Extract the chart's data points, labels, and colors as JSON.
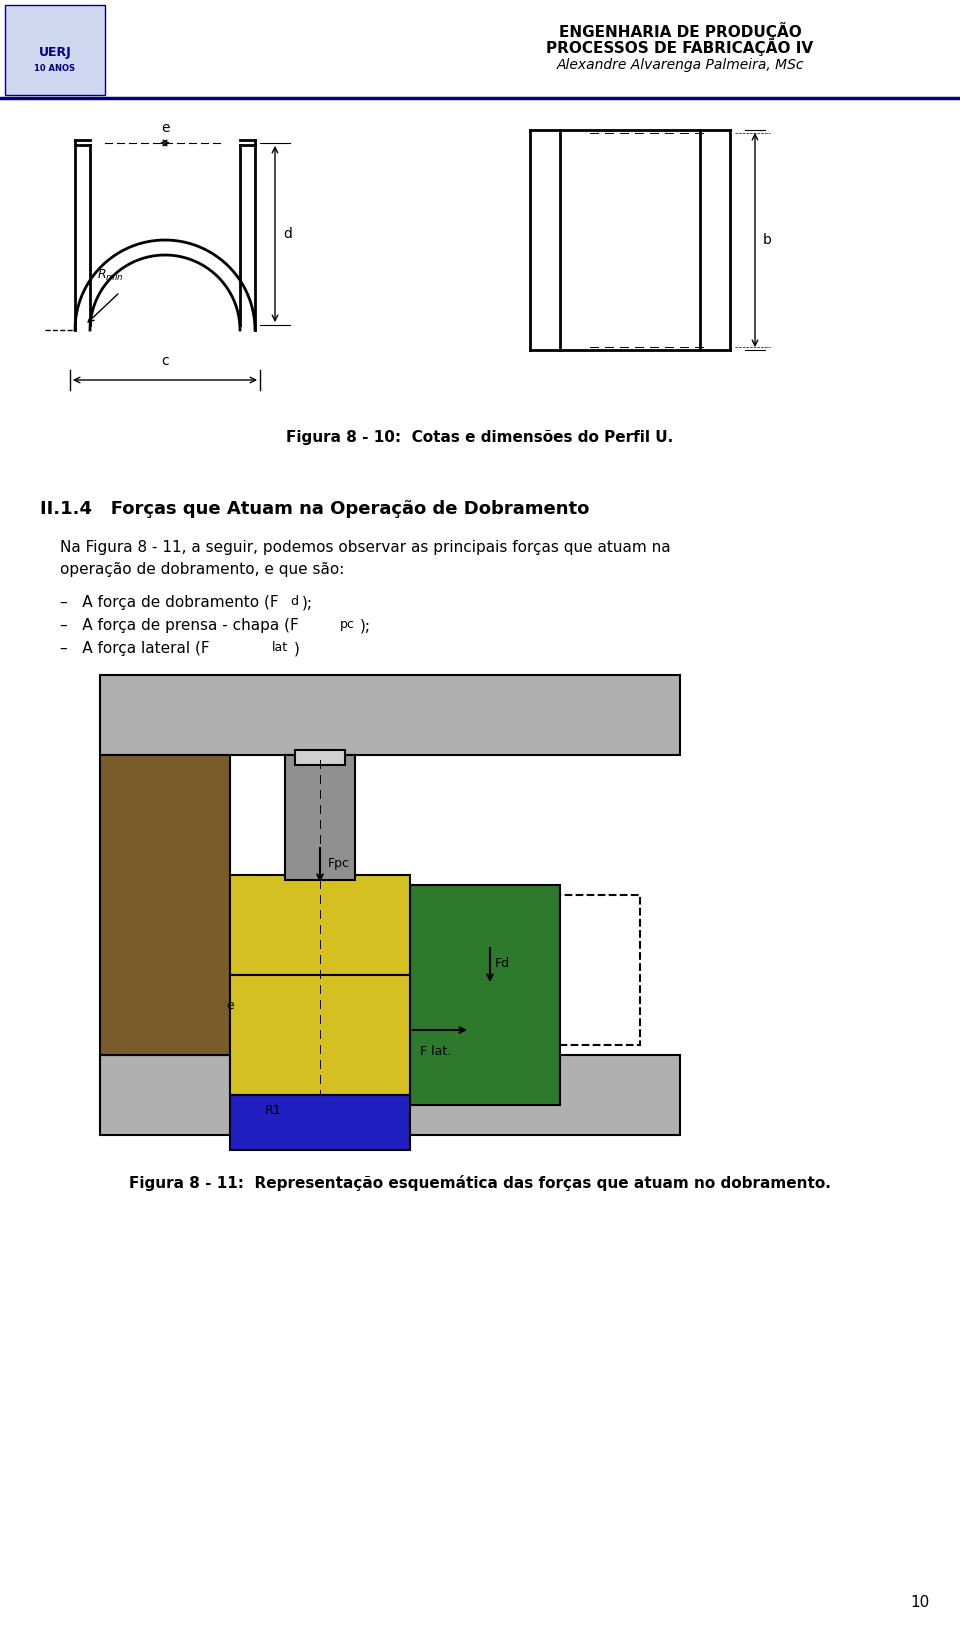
{
  "page_width": 9.6,
  "page_height": 16.35,
  "bg_color": "#ffffff",
  "header_line_color": "#000080",
  "header_title1": "ENGENHARIA DE PRODUÇÃO",
  "header_title2": "PROCESSOS DE FABRICAÇÃO IV",
  "header_title3": "Alexandre Alvarenga Palmeira, MSc",
  "section_title": "II.1.4   Forças que Atuam na Operação de Dobramento",
  "body_text": "Na Figura 8 - 11, a seguir, podemos observar as principais forças que atuam na\noperação de dobramento, e que são:",
  "bullet1": "–   A força de dobramento (F",
  "bullet1b": "d",
  "bullet1c": ");",
  "bullet2": "–   A força de prensa - chapa (F",
  "bullet2b": "pc",
  "bullet2c": ");",
  "bullet3": "–   A força lateral (F",
  "bullet3b": "lat",
  "bullet3c": ")",
  "fig10_caption": "Figura 8 - 10:  Cotas e dimensões do Perfil U.",
  "fig11_caption": "Figura 8 - 11:  Representação esquemática das forças que atuam no dobramento.",
  "page_number": "10",
  "gray_light": "#c8c8c8",
  "gray_dark": "#808080",
  "yellow": "#e8d840",
  "green_dark": "#2d7a2d",
  "brown_dark": "#6b4c1e",
  "blue_dark": "#2020c0",
  "black": "#000000",
  "white": "#ffffff"
}
